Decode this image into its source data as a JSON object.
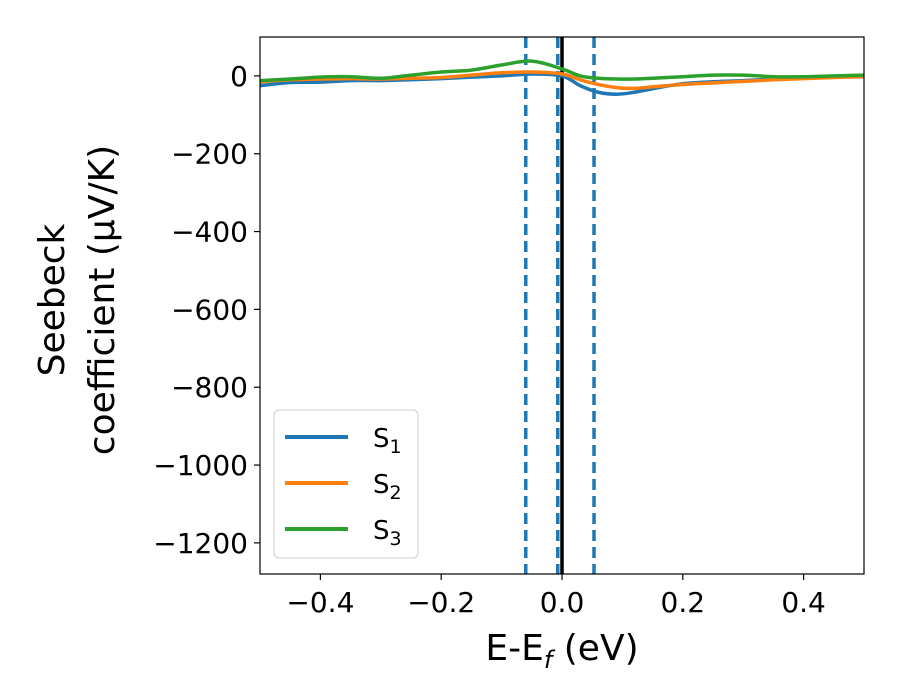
{
  "chart_data": {
    "type": "line",
    "xlabel": {
      "main": "E-E",
      "sub": "f",
      "tail": " (eV)"
    },
    "ylabel": {
      "line1": "Seebeck",
      "line2": "coefficient  (μV/K)"
    },
    "xlim": [
      -0.5,
      0.5
    ],
    "ylim": [
      -1280,
      100
    ],
    "xticks": [
      -0.4,
      -0.2,
      0.0,
      0.2,
      0.4
    ],
    "xtick_labels": [
      "−0.4",
      "−0.2",
      "0.0",
      "0.2",
      "0.4"
    ],
    "yticks": [
      0,
      -200,
      -400,
      -600,
      -800,
      -1000,
      -1200
    ],
    "ytick_labels": [
      "0",
      "−200",
      "−400",
      "−600",
      "−800",
      "−1000",
      "−1200"
    ],
    "grid": false,
    "legend_position": "lower-left",
    "series": [
      {
        "name": "S",
        "sub": "1",
        "color": "#1f77b4",
        "x": [
          -0.5,
          -0.45,
          -0.4,
          -0.35,
          -0.3,
          -0.25,
          -0.2,
          -0.15,
          -0.1,
          -0.05,
          0.0,
          0.03,
          0.06,
          0.09,
          0.12,
          0.15,
          0.2,
          0.25,
          0.3,
          0.35,
          0.4,
          0.45,
          0.5
        ],
        "y": [
          -25,
          -17,
          -16,
          -12,
          -12,
          -10,
          -7,
          -3,
          0,
          5,
          0,
          -25,
          -42,
          -47,
          -42,
          -33,
          -20,
          -15,
          -12,
          -8,
          -4,
          -1,
          0
        ]
      },
      {
        "name": "S",
        "sub": "2",
        "color": "#ff7f0e",
        "x": [
          -0.5,
          -0.45,
          -0.4,
          -0.35,
          -0.3,
          -0.25,
          -0.2,
          -0.15,
          -0.1,
          -0.05,
          0.0,
          0.03,
          0.06,
          0.09,
          0.12,
          0.15,
          0.2,
          0.25,
          0.3,
          0.35,
          0.4,
          0.45,
          0.5
        ],
        "y": [
          -15,
          -10,
          -8,
          -7,
          -8,
          -6,
          -4,
          2,
          8,
          10,
          5,
          -10,
          -22,
          -30,
          -32,
          -28,
          -22,
          -18,
          -14,
          -10,
          -7,
          -4,
          -2
        ]
      },
      {
        "name": "S",
        "sub": "3",
        "color": "#2ca02c",
        "x": [
          -0.5,
          -0.45,
          -0.4,
          -0.35,
          -0.3,
          -0.25,
          -0.2,
          -0.15,
          -0.1,
          -0.05,
          0.0,
          0.03,
          0.06,
          0.09,
          0.12,
          0.15,
          0.2,
          0.25,
          0.3,
          0.35,
          0.4,
          0.45,
          0.5
        ],
        "y": [
          -12,
          -8,
          -3,
          -2,
          -6,
          2,
          10,
          15,
          28,
          38,
          18,
          0,
          -6,
          -8,
          -8,
          -6,
          -2,
          2,
          2,
          -2,
          -2,
          0,
          2
        ]
      }
    ],
    "vlines": [
      {
        "x": -0.06,
        "style": "dashed",
        "color": "#1f77b4"
      },
      {
        "x": -0.007,
        "style": "dashed",
        "color": "#1f77b4"
      },
      {
        "x": 0.053,
        "style": "dashed",
        "color": "#1f77b4"
      },
      {
        "x": 0.0,
        "style": "solid",
        "color": "#000000"
      }
    ]
  }
}
